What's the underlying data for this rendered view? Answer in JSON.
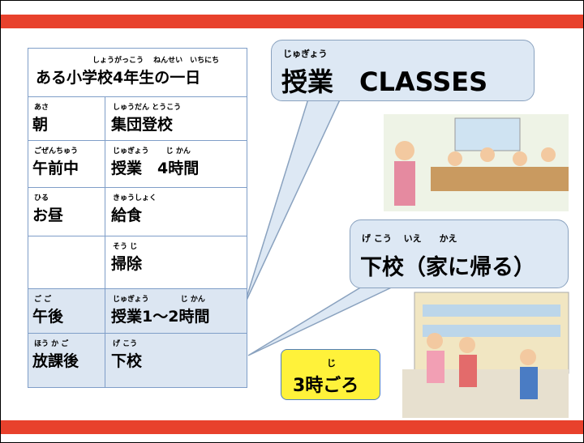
{
  "table": {
    "title_ruby": "しょうがっこう　 ねんせい　いちにち",
    "title": "ある小学校4年生の一日",
    "rows": [
      {
        "time_ruby": "あさ",
        "time": "朝",
        "activity_ruby": "しゅうだん とうこう",
        "activity": "集団登校"
      },
      {
        "time_ruby": "ごぜんちゅう",
        "time": "午前中",
        "activity_ruby": "じゅぎょう　　 じ かん",
        "activity": "授業　4時間"
      },
      {
        "time_ruby": "ひる",
        "time": "お昼",
        "activity_ruby": "きゅうしょく",
        "activity": "給食"
      },
      {
        "activity_ruby": "そう じ",
        "activity": "掃除"
      },
      {
        "time_ruby": "ご ご",
        "time": "午後",
        "activity_ruby": "じゅぎょう　　　　 じ かん",
        "activity": "授業1～2時間"
      },
      {
        "time_ruby": "ほう か ご",
        "time": "放課後",
        "activity_ruby": "げ こう",
        "activity": "下校"
      }
    ]
  },
  "callouts": [
    {
      "ruby": "じゅぎょう",
      "text": "授業　CLASSES"
    },
    {
      "ruby": "げ こう　 いえ　　かえ",
      "text": "下校（家に帰る）"
    },
    {
      "ruby": "じ",
      "text": "3時ごろ"
    }
  ]
}
